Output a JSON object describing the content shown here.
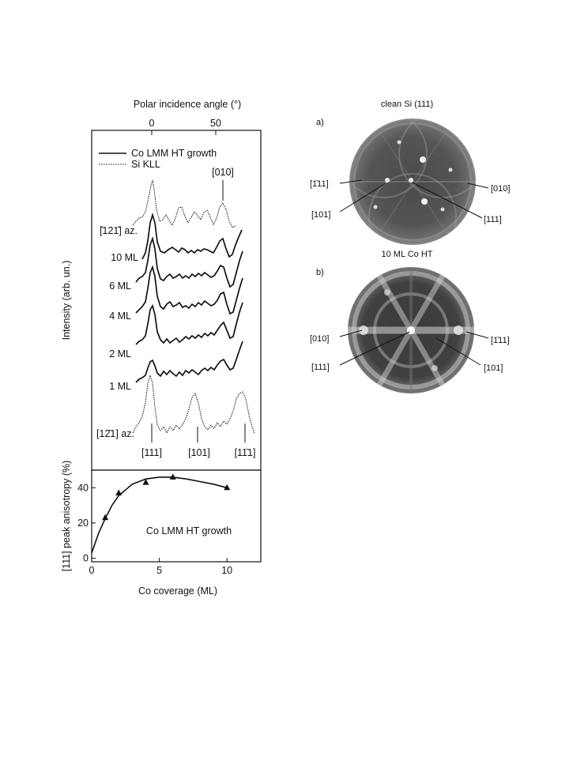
{
  "chart_data": [
    {
      "type": "line",
      "title": "",
      "top_axis_label": "Polar incidence angle (°)",
      "top_ticks": [
        0,
        50
      ],
      "ylabel": "Intensity (arb. un.)",
      "legend": [
        {
          "label": "Co LMM HT growth",
          "style": "solid"
        },
        {
          "label": "Si KLL",
          "style": "dotted"
        }
      ],
      "series": [
        {
          "name": "[̄121̄] az.",
          "style": "dotted"
        },
        {
          "name": "10 ML",
          "style": "solid"
        },
        {
          "name": "6 ML",
          "style": "solid"
        },
        {
          "name": "4 ML",
          "style": "solid"
        },
        {
          "name": "2 ML",
          "style": "solid"
        },
        {
          "name": "1 ML",
          "style": "solid"
        },
        {
          "name": "[12̄1] az.",
          "style": "dotted"
        }
      ],
      "peak_markers_top": [
        "[010]"
      ],
      "peak_markers_bottom": [
        "[111]",
        "[101]",
        "[11̄1]"
      ],
      "peak_positions_deg": {
        "[111]": 0,
        "[101]": 35,
        "[11̄1]": 70,
        "[010]": 55
      }
    },
    {
      "type": "scatter",
      "xlabel": "Co coverage (ML)",
      "ylabel": "[111] peak anisotropy (%)",
      "annotation": "Co LMM HT growth",
      "xlim": [
        0,
        12.5
      ],
      "ylim": [
        -2,
        50
      ],
      "xticks": [
        0,
        5,
        10
      ],
      "yticks": [
        0,
        20,
        40
      ],
      "points": {
        "x": [
          1,
          2,
          4,
          6,
          10
        ],
        "y": [
          23,
          37,
          43,
          46,
          40
        ]
      },
      "fit": {
        "x": [
          0,
          0.5,
          1,
          1.5,
          2,
          3,
          4,
          5,
          6,
          7,
          8,
          9,
          10
        ],
        "y": [
          3,
          14,
          22.5,
          30,
          35.5,
          42,
          45,
          46,
          46,
          45,
          43.5,
          42,
          40
        ]
      }
    }
  ],
  "patterns": {
    "a": {
      "letter": "a)",
      "title": "clean Si (111)",
      "labels": [
        "[1̄11]",
        "[010]",
        "[101]",
        "[111]"
      ]
    },
    "b": {
      "letter": "b)",
      "title": "10 ML Co HT",
      "labels": [
        "[010]",
        "[1̄11]",
        "[111]",
        "[101]"
      ]
    }
  }
}
